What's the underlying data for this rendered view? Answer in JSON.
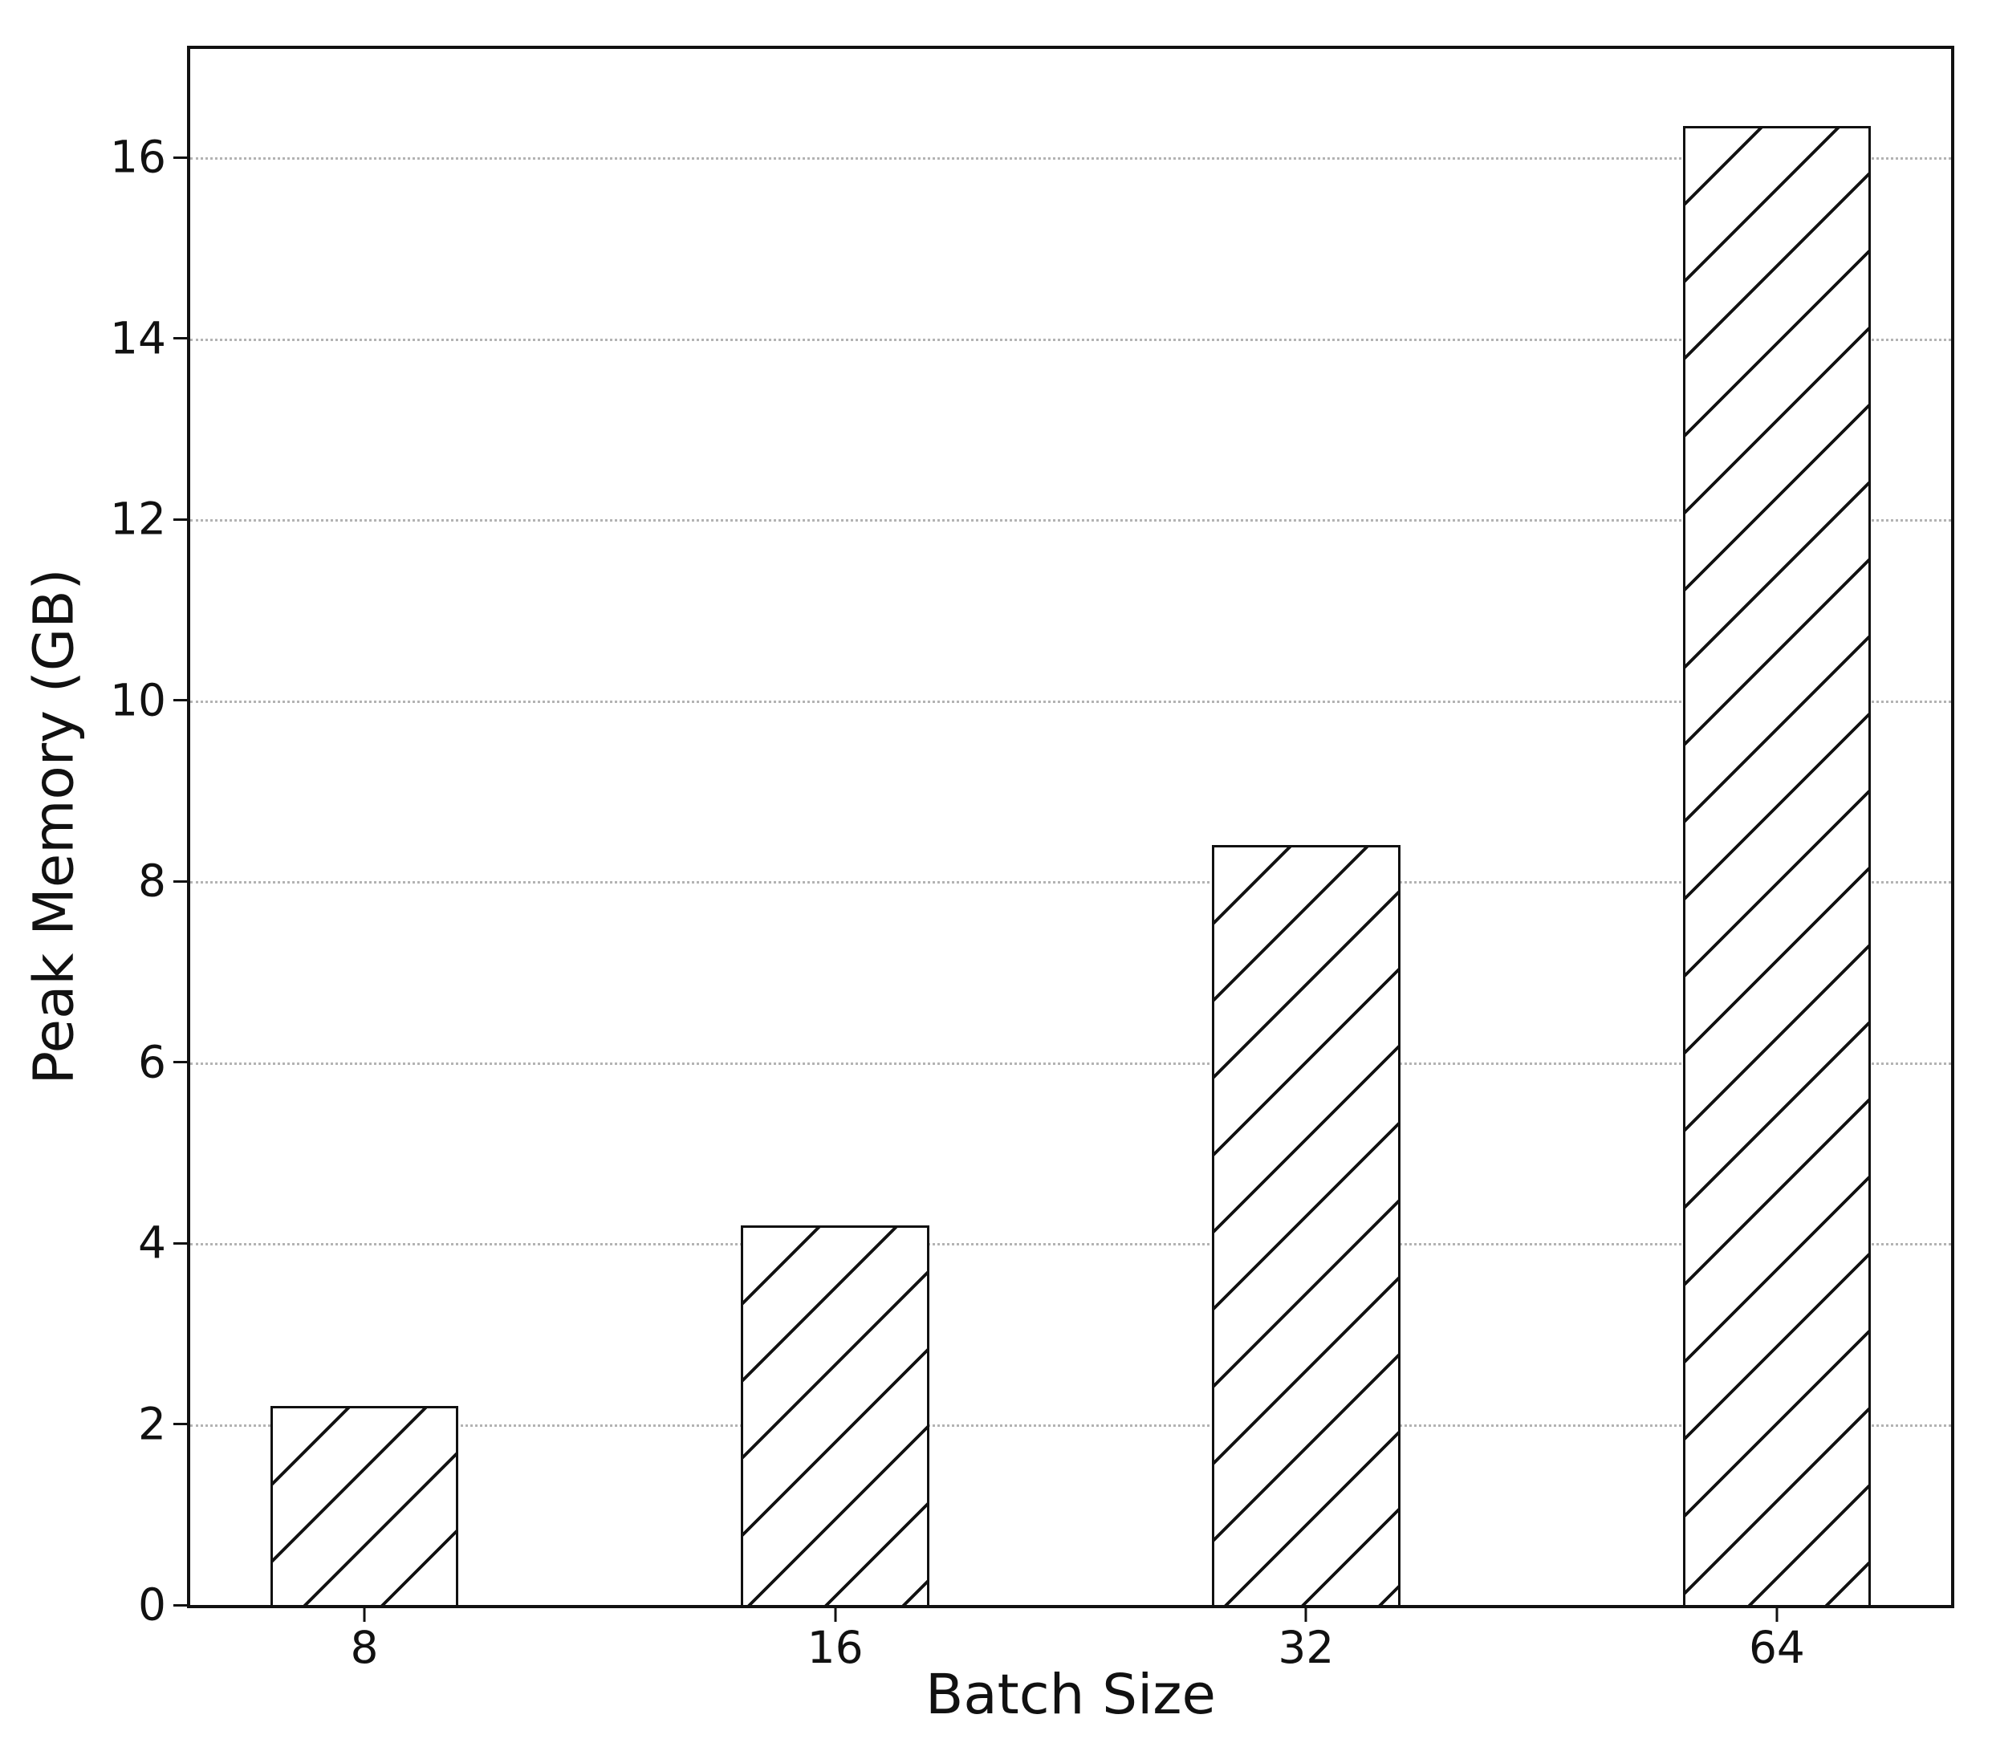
{
  "chart_data": {
    "type": "bar",
    "xlabel": "Batch Size",
    "ylabel": "Peak Memory (GB)",
    "categories": [
      "8",
      "16",
      "32",
      "64"
    ],
    "values": [
      2.2,
      4.2,
      8.4,
      16.35
    ],
    "yticks": [
      0,
      2,
      4,
      6,
      8,
      10,
      12,
      14,
      16
    ],
    "ylim": [
      0,
      17.2
    ],
    "bar_width_fraction": 0.4,
    "grid": "horizontal dotted",
    "legend_position": "none",
    "bar_hatch": "/",
    "colors": {
      "background": "#ffffff",
      "bar_fill": "#ffffff",
      "bar_edge": "#1a1a1a",
      "axis": "#111111",
      "grid": "#b3b3b3",
      "text": "#111111"
    }
  }
}
